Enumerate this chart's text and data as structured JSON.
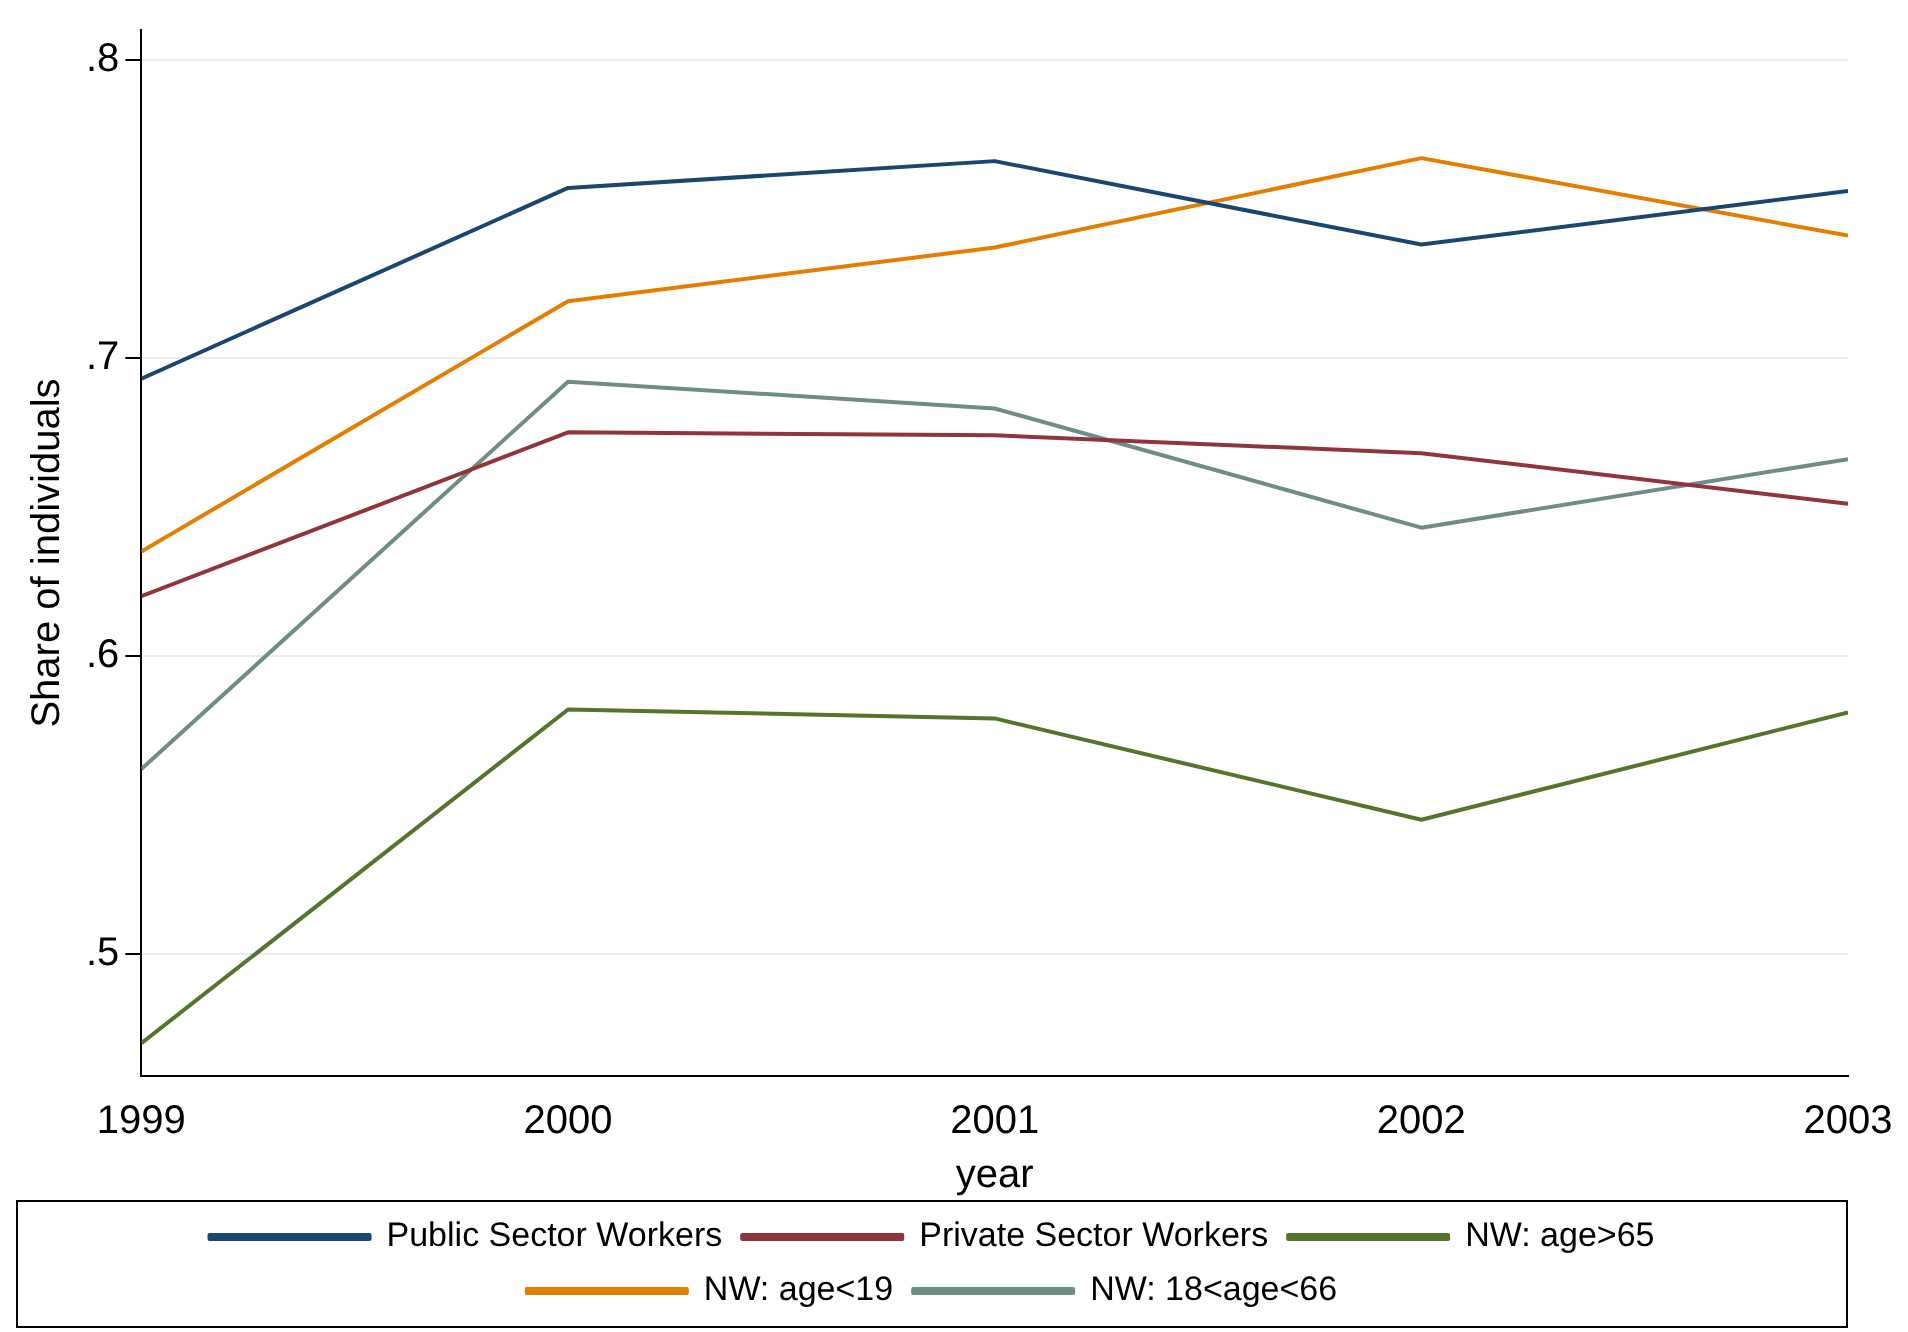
{
  "chart_data": {
    "type": "line",
    "xlabel": "year",
    "ylabel": "Share of individuals",
    "x": [
      1999,
      2000,
      2001,
      2002,
      2003
    ],
    "xlim": [
      1999,
      2003
    ],
    "xticks": [
      1999,
      2000,
      2001,
      2002,
      2003
    ],
    "ylim": [
      0.459,
      0.81
    ],
    "yticks": [
      {
        "value": 0.5,
        "label": ".5"
      },
      {
        "value": 0.6,
        "label": ".6"
      },
      {
        "value": 0.7,
        "label": ".7"
      },
      {
        "value": 0.8,
        "label": ".8"
      }
    ],
    "grid": "y",
    "legend": "bottom",
    "marker": "none",
    "line_style": "solid",
    "series": [
      {
        "name": "Public Sector Workers",
        "color": "#1a476f",
        "values": [
          0.693,
          0.757,
          0.766,
          0.738,
          0.756
        ]
      },
      {
        "name": "Private Sector Workers",
        "color": "#90353b",
        "values": [
          0.62,
          0.675,
          0.674,
          0.668,
          0.651
        ]
      },
      {
        "name": "NW: age>65",
        "color": "#55752f",
        "values": [
          0.47,
          0.582,
          0.579,
          0.545,
          0.581
        ]
      },
      {
        "name": "NW: age<19",
        "color": "#e37e00",
        "values": [
          0.635,
          0.719,
          0.737,
          0.767,
          0.741
        ]
      },
      {
        "name": "NW: 18<age<66",
        "color": "#6e8e84",
        "values": [
          0.562,
          0.692,
          0.683,
          0.643,
          0.666
        ]
      }
    ]
  }
}
